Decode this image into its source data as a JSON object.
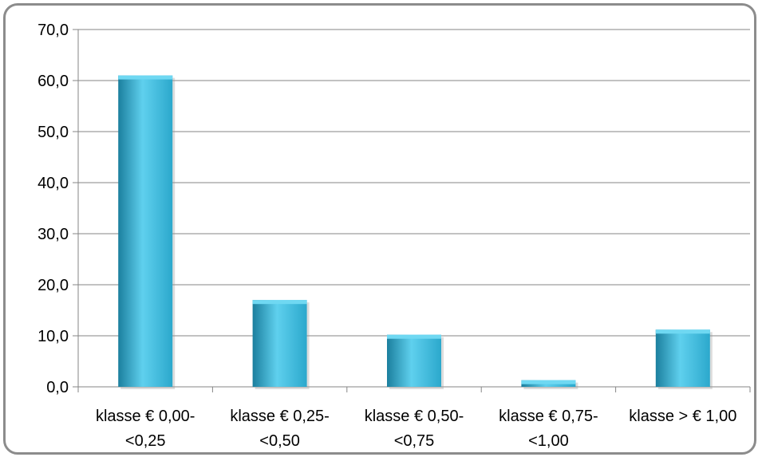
{
  "chart_data": {
    "type": "bar",
    "categories": [
      [
        "klasse € 0,00-",
        "<0,25"
      ],
      [
        "klasse € 0,25-",
        "<0,50"
      ],
      [
        "klasse € 0,50-",
        "<0,75"
      ],
      [
        "klasse € 0,75-",
        "<1,00"
      ],
      [
        "klasse >  € 1,00"
      ]
    ],
    "values": [
      61.0,
      17.0,
      10.2,
      1.3,
      11.2
    ],
    "yticks": [
      "0,0",
      "10,0",
      "20,0",
      "30,0",
      "40,0",
      "50,0",
      "60,0",
      "70,0"
    ],
    "ylim": [
      0,
      70
    ],
    "title": "",
    "xlabel": "",
    "ylabel": "",
    "grid": true,
    "legend": "none",
    "colors": {
      "bar_light": "#5fd0ee",
      "bar_mid": "#2ba8cc",
      "bar_dark": "#1b7f9e",
      "bar_top": "#6fd8f2",
      "grid": "#868686",
      "frame": "#8c8c8c"
    }
  }
}
